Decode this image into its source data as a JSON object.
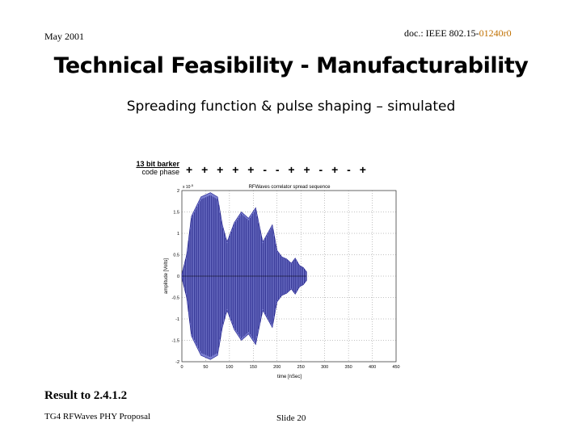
{
  "header": {
    "date": "May 2001",
    "doc_prefix": "doc.: IEEE 802.15-",
    "doc_rev": "01240r0"
  },
  "title": "Technical Feasibility - Manufacturability",
  "subtitle": "Spreading function & pulse shaping – simulated",
  "barker": {
    "label_line1": "13 bit barker",
    "label_line2": "code phase",
    "phases": "+ + + + + - - + + - + - +"
  },
  "chart_data": {
    "type": "line",
    "title": "RFWaves correlator spread sequence",
    "xlabel": "time [nSec]",
    "ylabel": "amplitude [Volts]",
    "y_exponent_label": "x 10",
    "y_exponent_power": "-5",
    "xlim": [
      0,
      450
    ],
    "ylim": [
      -2,
      2
    ],
    "x_ticks": [
      "0",
      "50",
      "100",
      "150",
      "200",
      "250",
      "300",
      "350",
      "400",
      "450"
    ],
    "y_ticks": [
      "2",
      "1.5",
      "1",
      "0.5",
      "0",
      "-0.5",
      "-1",
      "-1.5",
      "-2"
    ],
    "envelope": [
      {
        "t": 0,
        "a": 0.05
      },
      {
        "t": 10,
        "a": 0.5
      },
      {
        "t": 20,
        "a": 1.4
      },
      {
        "t": 40,
        "a": 1.85
      },
      {
        "t": 60,
        "a": 1.95
      },
      {
        "t": 75,
        "a": 1.85
      },
      {
        "t": 85,
        "a": 1.2
      },
      {
        "t": 95,
        "a": 0.8
      },
      {
        "t": 110,
        "a": 1.25
      },
      {
        "t": 125,
        "a": 1.5
      },
      {
        "t": 140,
        "a": 1.35
      },
      {
        "t": 155,
        "a": 1.6
      },
      {
        "t": 170,
        "a": 0.8
      },
      {
        "t": 190,
        "a": 1.2
      },
      {
        "t": 200,
        "a": 0.6
      },
      {
        "t": 210,
        "a": 0.45
      },
      {
        "t": 220,
        "a": 0.4
      },
      {
        "t": 230,
        "a": 0.3
      },
      {
        "t": 238,
        "a": 0.42
      },
      {
        "t": 247,
        "a": 0.25
      },
      {
        "t": 255,
        "a": 0.2
      },
      {
        "t": 262,
        "a": 0.1
      }
    ]
  },
  "result_text": "Result to 2.4.1.2",
  "footer": {
    "left": "TG4 RFWaves PHY Proposal",
    "center": "Slide 20"
  }
}
